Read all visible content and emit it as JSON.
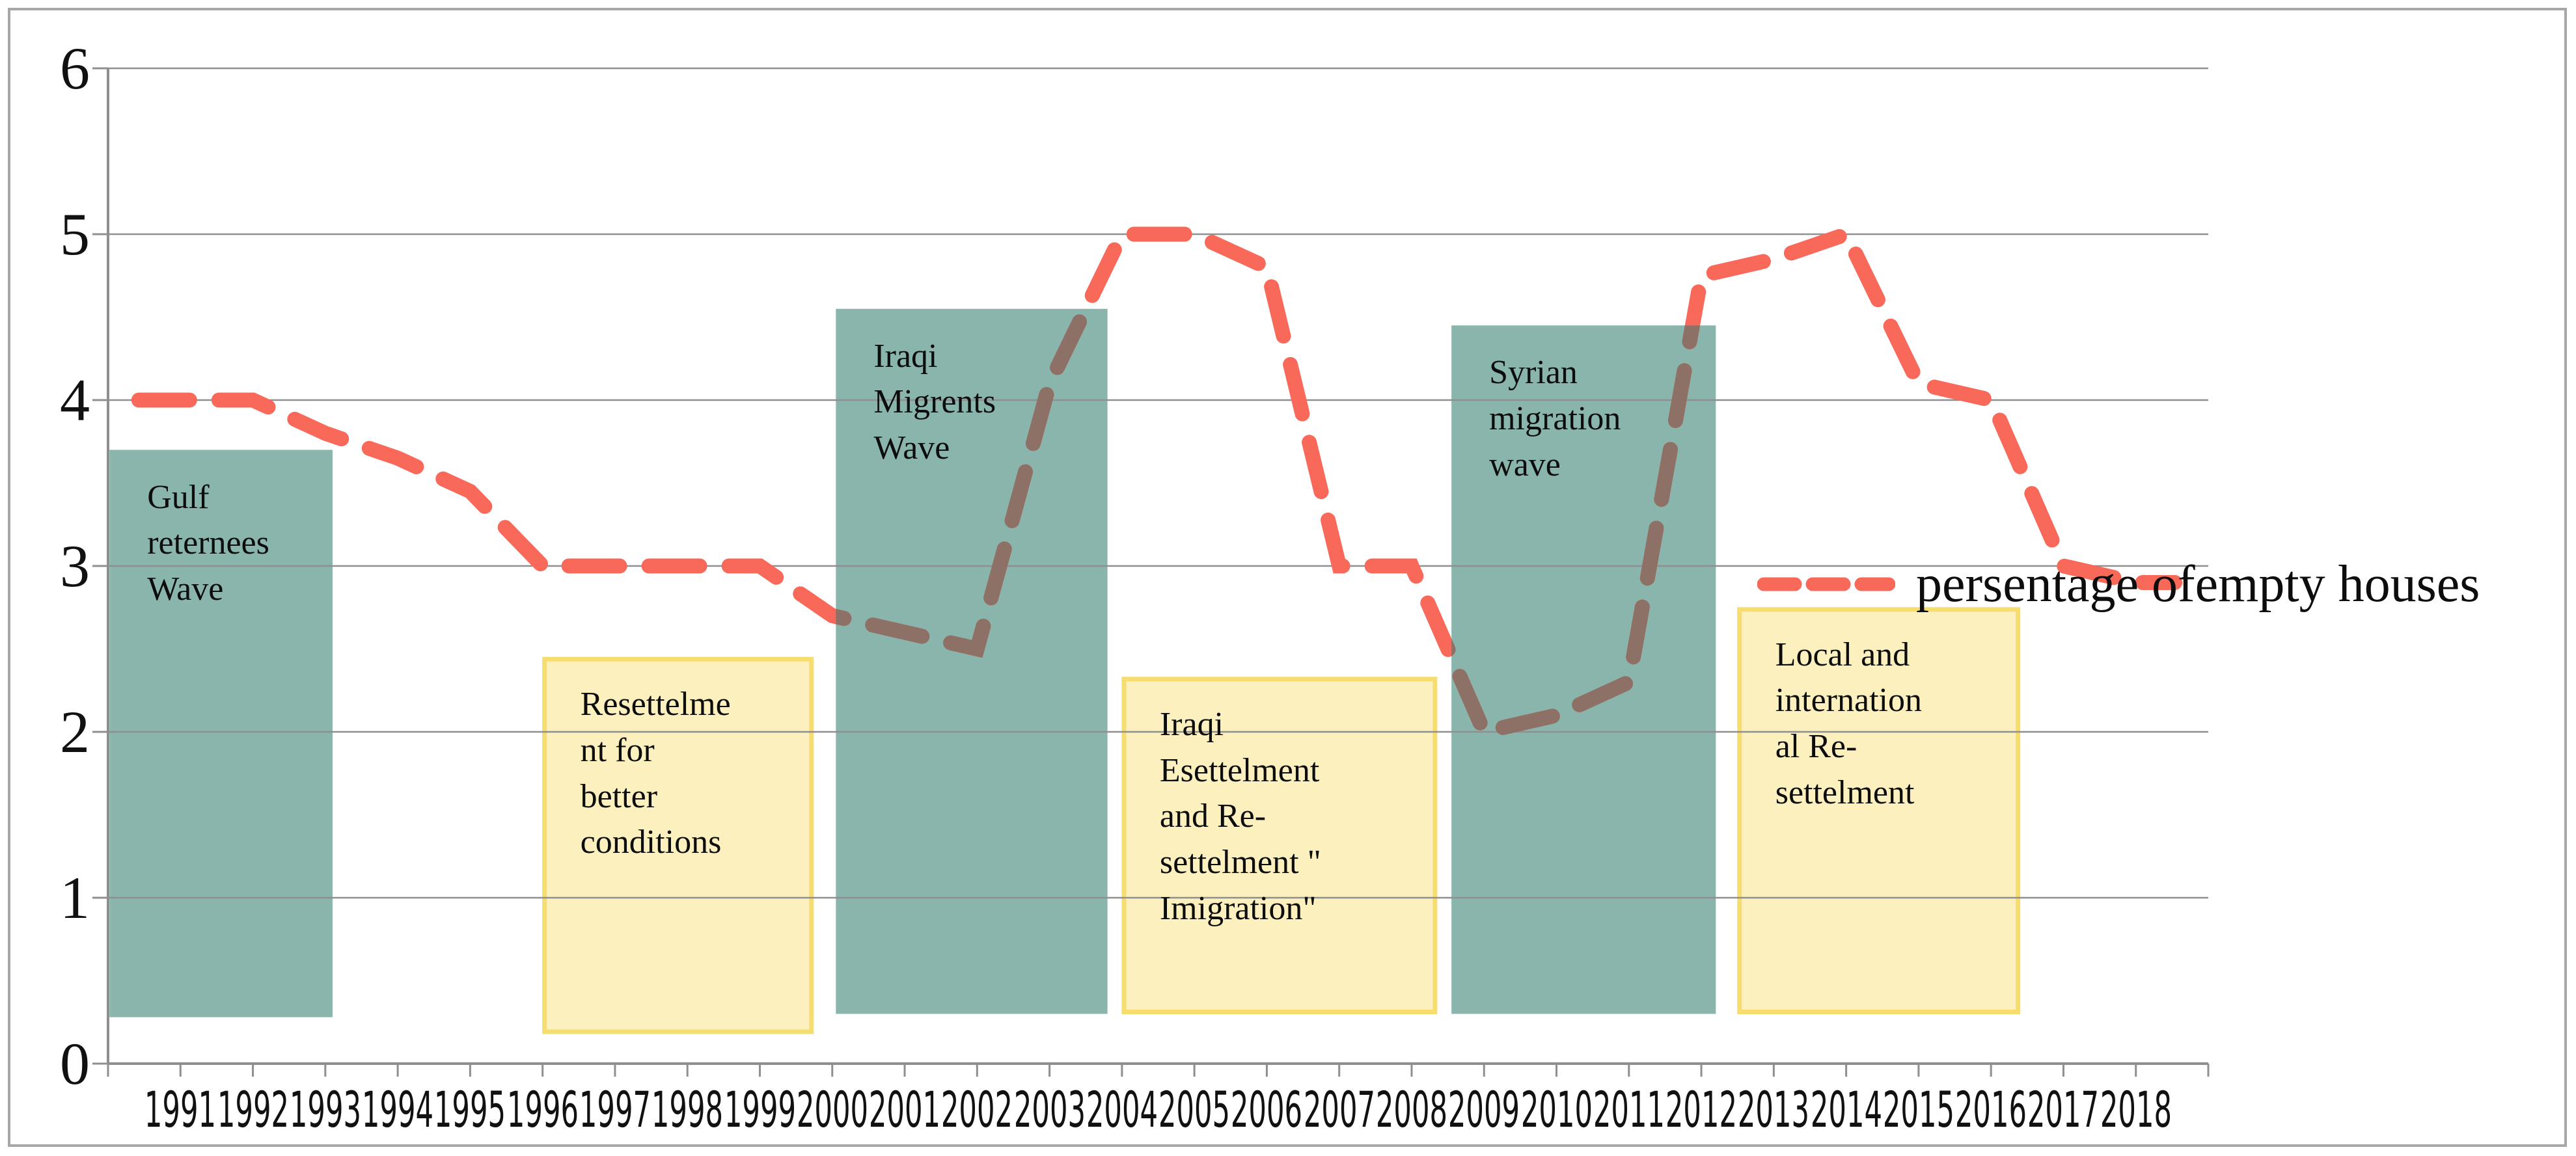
{
  "figure": {
    "background": "#ffffff",
    "border_color": "#a7a7a7"
  },
  "colors": {
    "teal_fill": "#89b5ac",
    "yellow_fill": "#fbf0be",
    "yellow_border": "#f6dd6e",
    "line_red": "#f8695a",
    "line_brown_over_teal": "#8e7166",
    "gridline": "#8f8f8f",
    "axis": "#8f8f8f",
    "text": "#111111"
  },
  "legend": {
    "label": "persentage ofempty houses",
    "swatch": "red-dashed-line-icon"
  },
  "chart_data": {
    "type": "line",
    "title": "",
    "xlabel": "",
    "ylabel": "",
    "x": [
      1991,
      1992,
      1993,
      1994,
      1995,
      1996,
      1997,
      1998,
      1999,
      2000,
      2001,
      2002,
      2003,
      2004,
      2005,
      2006,
      2007,
      2008,
      2009,
      2010,
      2011,
      2012,
      2013,
      2014,
      2015,
      2016,
      2017,
      2018
    ],
    "series": [
      {
        "name": "persentage ofempty houses",
        "style": "dashed",
        "color": "#f8695a",
        "overlay_color_on_teal": "#8e7166",
        "values": [
          4.0,
          4.0,
          3.8,
          3.65,
          3.45,
          3.0,
          3.0,
          3.0,
          3.0,
          2.7,
          2.6,
          2.5,
          4.1,
          5.0,
          5.0,
          4.8,
          3.0,
          3.0,
          2.0,
          2.1,
          2.3,
          4.75,
          4.85,
          5.0,
          4.1,
          4.0,
          3.0,
          2.9
        ]
      }
    ],
    "ylim": [
      0,
      6
    ],
    "yticks": [
      0,
      1,
      2,
      3,
      4,
      5,
      6
    ],
    "grid": true,
    "legend_position": "right-middle",
    "annotations": [
      {
        "label": "Gulf\nreternees\nWave",
        "style": "teal",
        "from_year": 1990.02,
        "to_year": 1993.1,
        "bottom": 0.28,
        "top": 3.7
      },
      {
        "label": "Resettelme\nnt for\nbetter\nconditions",
        "style": "yellow",
        "from_year": 1996.0,
        "to_year": 1999.74,
        "bottom": 0.18,
        "top": 2.45
      },
      {
        "label": "Iraqi\nMigrents\nWave",
        "style": "teal",
        "from_year": 2000.05,
        "to_year": 2003.8,
        "bottom": 0.3,
        "top": 4.55
      },
      {
        "label": "Iraqi\nEsettelment\nand Re-\nsettelment \"\nImigration\"",
        "style": "yellow",
        "from_year": 2004.0,
        "to_year": 2008.35,
        "bottom": 0.3,
        "top": 2.33
      },
      {
        "label": "Syrian\nmigration\nwave",
        "style": "teal",
        "from_year": 2008.55,
        "to_year": 2012.2,
        "bottom": 0.3,
        "top": 4.45
      },
      {
        "label": "Local and\ninternation\nal Re-\nsettelment",
        "style": "yellow",
        "from_year": 2012.5,
        "to_year": 2016.4,
        "bottom": 0.3,
        "top": 2.75
      }
    ]
  }
}
